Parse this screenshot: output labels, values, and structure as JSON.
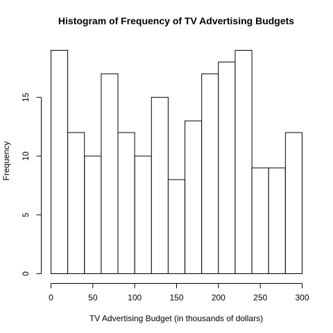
{
  "chart_data": {
    "type": "bar",
    "title": "Histogram of Frequency of TV Advertising Budgets",
    "xlabel": "TV Advertising Budget (in thousands of dollars)",
    "ylabel": "Frequency",
    "bins": [
      {
        "start": 0,
        "end": 20,
        "value": 19
      },
      {
        "start": 20,
        "end": 40,
        "value": 12
      },
      {
        "start": 40,
        "end": 60,
        "value": 10
      },
      {
        "start": 60,
        "end": 80,
        "value": 17
      },
      {
        "start": 80,
        "end": 100,
        "value": 12
      },
      {
        "start": 100,
        "end": 120,
        "value": 10
      },
      {
        "start": 120,
        "end": 140,
        "value": 15
      },
      {
        "start": 140,
        "end": 160,
        "value": 8
      },
      {
        "start": 160,
        "end": 180,
        "value": 13
      },
      {
        "start": 180,
        "end": 200,
        "value": 17
      },
      {
        "start": 200,
        "end": 220,
        "value": 18
      },
      {
        "start": 220,
        "end": 240,
        "value": 19
      },
      {
        "start": 240,
        "end": 260,
        "value": 9
      },
      {
        "start": 260,
        "end": 280,
        "value": 9
      },
      {
        "start": 280,
        "end": 300,
        "value": 12
      }
    ],
    "xlim": [
      0,
      300
    ],
    "ylim": [
      0,
      19
    ],
    "x_ticks": [
      0,
      50,
      100,
      150,
      200,
      250,
      300
    ],
    "y_ticks": [
      0,
      5,
      10,
      15
    ],
    "grid": false,
    "legend": "none"
  }
}
